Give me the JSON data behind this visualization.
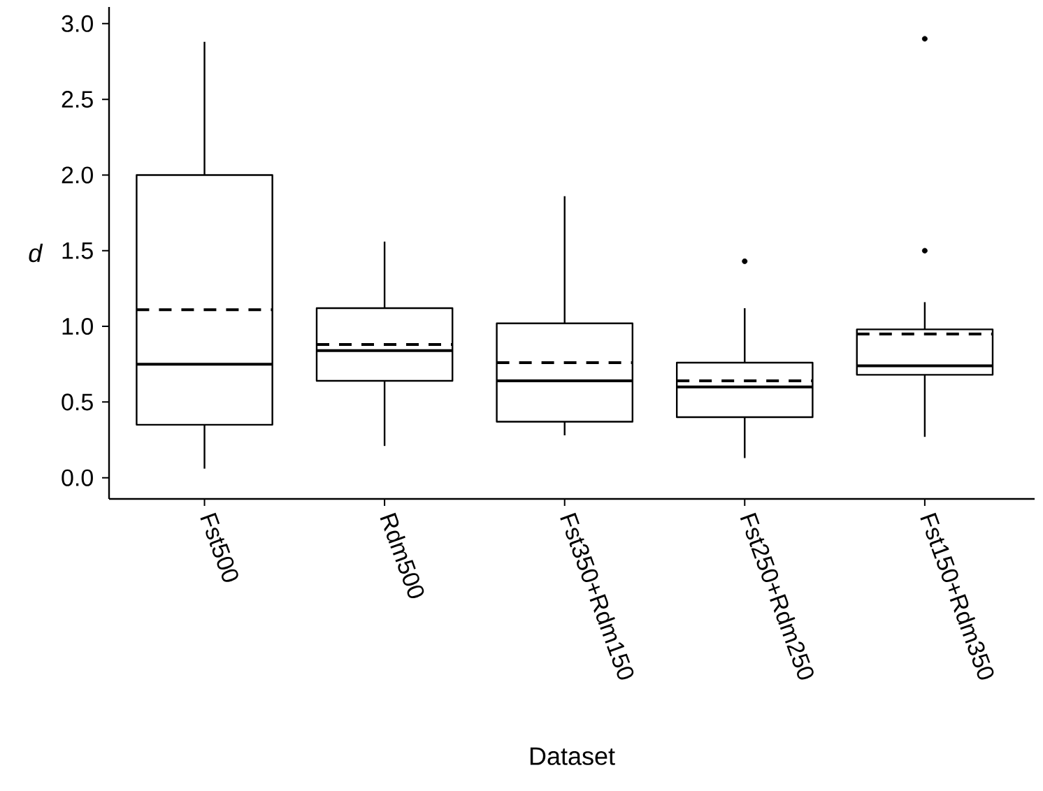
{
  "chart_data": {
    "type": "box",
    "xlabel": "Dataset",
    "ylabel": "d",
    "categories": [
      "Fst500",
      "Rdm500",
      "Fst350+Rdm150",
      "Fst250+Rdm250",
      "Fst150+Rdm350"
    ],
    "boxes": [
      {
        "low": 0.06,
        "q1": 0.35,
        "median": 0.75,
        "q3": 2.0,
        "high": 2.88,
        "mean": 1.11
      },
      {
        "low": 0.21,
        "q1": 0.64,
        "median": 0.84,
        "q3": 1.12,
        "high": 1.56,
        "mean": 0.88
      },
      {
        "low": 0.28,
        "q1": 0.37,
        "median": 0.64,
        "q3": 1.02,
        "high": 1.86,
        "mean": 0.76
      },
      {
        "low": 0.13,
        "q1": 0.4,
        "median": 0.6,
        "q3": 0.76,
        "high": 1.12,
        "mean": 0.64,
        "outliers": [
          1.43
        ]
      },
      {
        "low": 0.27,
        "q1": 0.68,
        "median": 0.74,
        "q3": 0.98,
        "high": 1.16,
        "mean": 0.95,
        "outliers": [
          1.5,
          2.9
        ]
      }
    ],
    "ylim": [
      -0.14,
      3.11
    ],
    "yticks": [
      {
        "value": 0,
        "label": "0.0"
      },
      0.5,
      {
        "value": 1,
        "label": "1.0"
      },
      1.5,
      {
        "value": 2,
        "label": "2.0"
      },
      2.5,
      {
        "value": 3,
        "label": "3.0"
      }
    ]
  }
}
